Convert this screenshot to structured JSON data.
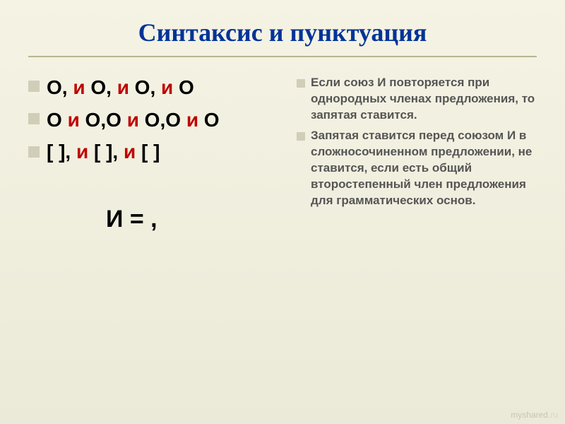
{
  "title": "Синтаксис и пунктуация",
  "left": {
    "line1_parts": [
      "О, ",
      "и",
      " О, ",
      "и",
      " О, ",
      "и",
      " О"
    ],
    "line2_parts": [
      "О ",
      "и",
      " О,О ",
      "и",
      " О,О ",
      "и",
      " О"
    ],
    "line3_parts": [
      "[   ], ",
      "и",
      " [   ], ",
      "и",
      " [   ]"
    ],
    "equation": "И = ,"
  },
  "right": {
    "para1": "Если союз И повторяется при однородных членах предложения, то запятая ставится.",
    "para2": "Запятая ставится перед союзом И в сложносочиненном предложении, не ставится, если есть общий второстепенный член предложения для грамматических основ."
  },
  "watermark": {
    "brand": "myshared",
    "suffix": ".ru"
  },
  "colors": {
    "title": "#003399",
    "red": "#c00000",
    "bullet": "#d0ceb8",
    "body_text": "#555",
    "bg_top": "#f5f3e4",
    "bg_bottom": "#ebe9d7",
    "rule": "#b8b690"
  }
}
